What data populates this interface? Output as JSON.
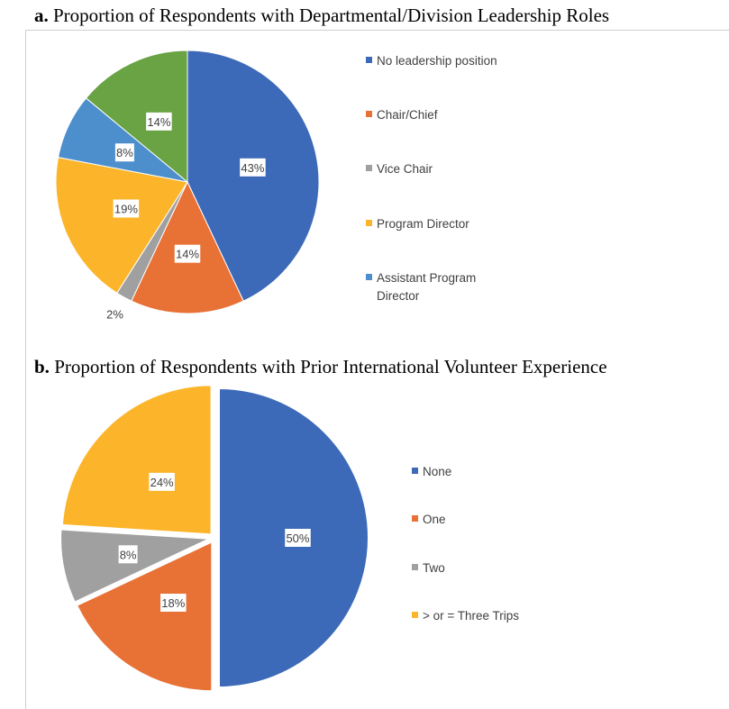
{
  "chart_data": [
    {
      "type": "pie",
      "panel": "a.",
      "title": "Proportion of Respondents with Departmental/Division Leadership Roles",
      "legend_position": "right",
      "slices": [
        {
          "label": "No leadership position",
          "value": 43,
          "data_label": "43%",
          "color": "#3C6AB8"
        },
        {
          "label": "Chair/Chief",
          "value": 14,
          "data_label": "14%",
          "color": "#E87136"
        },
        {
          "label": "Vice Chair",
          "value": 2,
          "data_label": "2%",
          "color": "#A0A0A0"
        },
        {
          "label": "Program Director",
          "value": 19,
          "data_label": "19%",
          "color": "#FCB52B"
        },
        {
          "label": "Assistant Program Director",
          "value": 8,
          "data_label": "8%",
          "color": "#4D8ECC"
        },
        {
          "label": "",
          "value": 14,
          "data_label": "14%",
          "color": "#69A344"
        }
      ]
    },
    {
      "type": "pie",
      "panel": "b.",
      "title": "Proportion of Respondents with Prior International Volunteer Experience",
      "legend_position": "right",
      "exploded": true,
      "slices": [
        {
          "label": "None",
          "value": 50,
          "data_label": "50%",
          "color": "#3C6AB8"
        },
        {
          "label": "One",
          "value": 18,
          "data_label": "18%",
          "color": "#E87136"
        },
        {
          "label": "Two",
          "value": 8,
          "data_label": "8%",
          "color": "#A0A0A0"
        },
        {
          "label": "> or = Three Trips",
          "value": 24,
          "data_label": "24%",
          "color": "#FCB52B"
        }
      ]
    }
  ]
}
